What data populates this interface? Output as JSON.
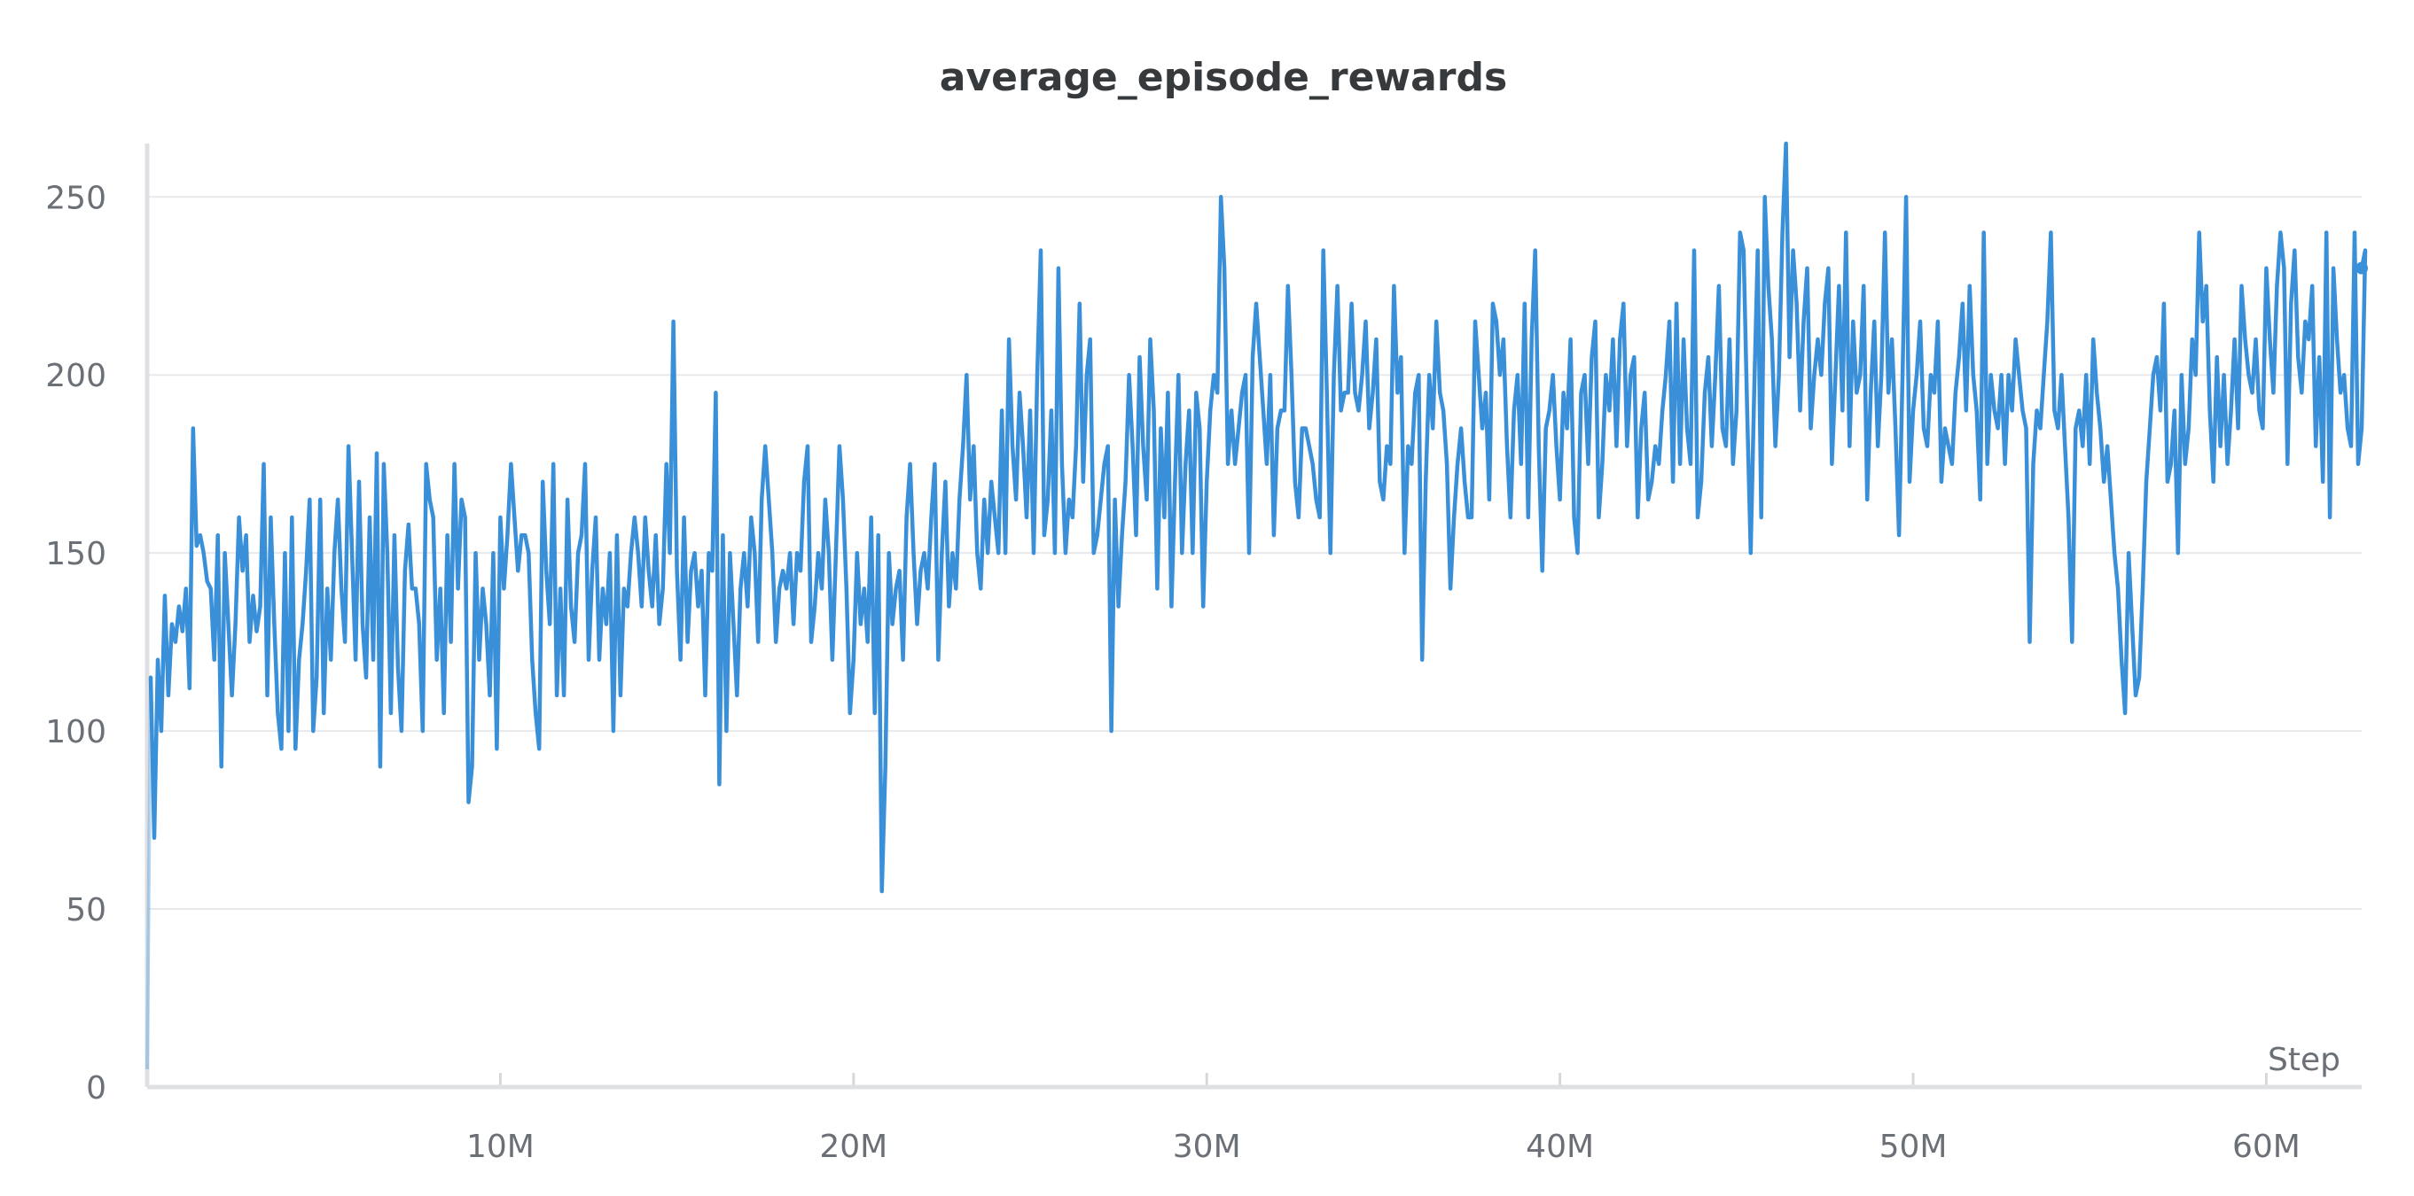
{
  "chart_data": {
    "type": "line",
    "title": "average_episode_rewards",
    "xlabel": "Step",
    "ylabel": "",
    "xlim": [
      0,
      62700000
    ],
    "ylim": [
      0,
      265
    ],
    "grid": true,
    "legend": "none",
    "x_ticks": [
      10000000,
      20000000,
      30000000,
      40000000,
      50000000,
      60000000
    ],
    "x_tick_labels": [
      "10M",
      "20M",
      "30M",
      "40M",
      "50M",
      "60M"
    ],
    "y_ticks": [
      0,
      50,
      100,
      150,
      200,
      250
    ],
    "y_tick_labels": [
      "0",
      "50",
      "100",
      "150",
      "200",
      "250"
    ],
    "colors": {
      "line": "#3a8fd9",
      "text": "#6b6f76",
      "title": "#363a3d",
      "grid": "#e8e9ec"
    },
    "series": [
      {
        "name": "average_episode_rewards",
        "x_step": 100000,
        "values": [
          5,
          115,
          70,
          120,
          100,
          138,
          110,
          130,
          125,
          135,
          128,
          140,
          112,
          185,
          152,
          155,
          150,
          142,
          140,
          120,
          155,
          90,
          150,
          130,
          110,
          130,
          160,
          145,
          155,
          125,
          138,
          128,
          135,
          175,
          110,
          160,
          130,
          105,
          95,
          150,
          100,
          160,
          95,
          120,
          130,
          145,
          165,
          100,
          115,
          165,
          105,
          140,
          120,
          150,
          165,
          140,
          125,
          180,
          150,
          120,
          170,
          130,
          115,
          160,
          120,
          178,
          90,
          175,
          150,
          105,
          155,
          118,
          100,
          145,
          158,
          140,
          140,
          130,
          100,
          175,
          165,
          160,
          120,
          140,
          105,
          155,
          125,
          175,
          140,
          165,
          160,
          80,
          90,
          150,
          120,
          140,
          130,
          110,
          150,
          95,
          160,
          140,
          155,
          175,
          160,
          145,
          155,
          155,
          150,
          120,
          105,
          95,
          170,
          145,
          130,
          175,
          110,
          140,
          110,
          165,
          135,
          125,
          150,
          155,
          175,
          120,
          145,
          160,
          120,
          140,
          130,
          150,
          100,
          155,
          110,
          140,
          135,
          150,
          160,
          150,
          135,
          160,
          145,
          135,
          155,
          130,
          140,
          175,
          150,
          215,
          145,
          120,
          160,
          125,
          145,
          150,
          135,
          145,
          110,
          150,
          145,
          195,
          85,
          155,
          100,
          150,
          130,
          110,
          140,
          150,
          135,
          160,
          150,
          125,
          165,
          180,
          165,
          150,
          125,
          140,
          145,
          140,
          150,
          130,
          150,
          145,
          170,
          180,
          125,
          135,
          150,
          140,
          165,
          150,
          120,
          150,
          180,
          165,
          140,
          105,
          120,
          150,
          130,
          140,
          125,
          160,
          105,
          155,
          55,
          90,
          150,
          130,
          140,
          145,
          120,
          160,
          175,
          150,
          130,
          145,
          150,
          140,
          160,
          175,
          120,
          150,
          170,
          135,
          150,
          140,
          165,
          180,
          200,
          165,
          180,
          150,
          140,
          165,
          150,
          170,
          160,
          150,
          190,
          150,
          210,
          180,
          165,
          195,
          180,
          160,
          190,
          150,
          200,
          235,
          155,
          165,
          190,
          150,
          230,
          175,
          150,
          165,
          160,
          180,
          220,
          170,
          200,
          210,
          150,
          155,
          165,
          175,
          180,
          100,
          165,
          135,
          155,
          170,
          200,
          180,
          155,
          205,
          180,
          165,
          210,
          190,
          140,
          185,
          160,
          195,
          135,
          170,
          200,
          150,
          175,
          190,
          150,
          195,
          185,
          135,
          170,
          190,
          200,
          195,
          250,
          230,
          175,
          190,
          175,
          185,
          195,
          200,
          150,
          205,
          220,
          205,
          190,
          175,
          200,
          155,
          185,
          190,
          190,
          225,
          200,
          170,
          160,
          185,
          185,
          180,
          175,
          165,
          160,
          235,
          195,
          150,
          200,
          225,
          190,
          195,
          195,
          220,
          195,
          190,
          200,
          215,
          185,
          195,
          210,
          170,
          165,
          180,
          175,
          225,
          195,
          205,
          150,
          180,
          175,
          195,
          200,
          120,
          170,
          200,
          185,
          215,
          195,
          190,
          175,
          140,
          160,
          175,
          185,
          170,
          160,
          160,
          215,
          200,
          185,
          195,
          165,
          220,
          215,
          200,
          210,
          180,
          160,
          190,
          200,
          175,
          220,
          160,
          210,
          235,
          180,
          145,
          185,
          190,
          200,
          180,
          165,
          195,
          185,
          210,
          160,
          150,
          195,
          200,
          175,
          205,
          215,
          160,
          175,
          200,
          190,
          210,
          180,
          210,
          220,
          180,
          200,
          205,
          160,
          185,
          195,
          165,
          170,
          180,
          175,
          190,
          200,
          215,
          170,
          220,
          175,
          210,
          185,
          175,
          235,
          160,
          170,
          195,
          205,
          180,
          200,
          225,
          185,
          180,
          210,
          175,
          190,
          240,
          235,
          190,
          150,
          195,
          235,
          160,
          250,
          225,
          210,
          180,
          200,
          240,
          265,
          205,
          235,
          220,
          190,
          215,
          230,
          185,
          200,
          210,
          200,
          220,
          230,
          175,
          200,
          225,
          190,
          240,
          180,
          215,
          195,
          200,
          225,
          165,
          195,
          215,
          180,
          200,
          240,
          195,
          210,
          185,
          155,
          200,
          250,
          170,
          190,
          200,
          215,
          185,
          180,
          200,
          195,
          215,
          170,
          185,
          180,
          175,
          195,
          205,
          220,
          190,
          225,
          200,
          190,
          165,
          240,
          175,
          200,
          190,
          185,
          200,
          175,
          200,
          190,
          210,
          200,
          190,
          185,
          125,
          175,
          190,
          185,
          200,
          215,
          240,
          190,
          185,
          200,
          180,
          160,
          125,
          185,
          190,
          180,
          200,
          175,
          210,
          195,
          185,
          170,
          180,
          165,
          150,
          140,
          120,
          105,
          150,
          130,
          110,
          115,
          140,
          170,
          185,
          200,
          205,
          190,
          220,
          170,
          175,
          190,
          150,
          200,
          175,
          185,
          210,
          200,
          240,
          215,
          225,
          190,
          170,
          205,
          180,
          200,
          175,
          190,
          210,
          185,
          225,
          210,
          200,
          195,
          210,
          190,
          185,
          230,
          210,
          195,
          225,
          240,
          230,
          175,
          220,
          235,
          205,
          195,
          215,
          210,
          225,
          180,
          205,
          170,
          240,
          160,
          230,
          210,
          195,
          200,
          185,
          180,
          240,
          175,
          185,
          235,
          230
        ]
      }
    ]
  }
}
